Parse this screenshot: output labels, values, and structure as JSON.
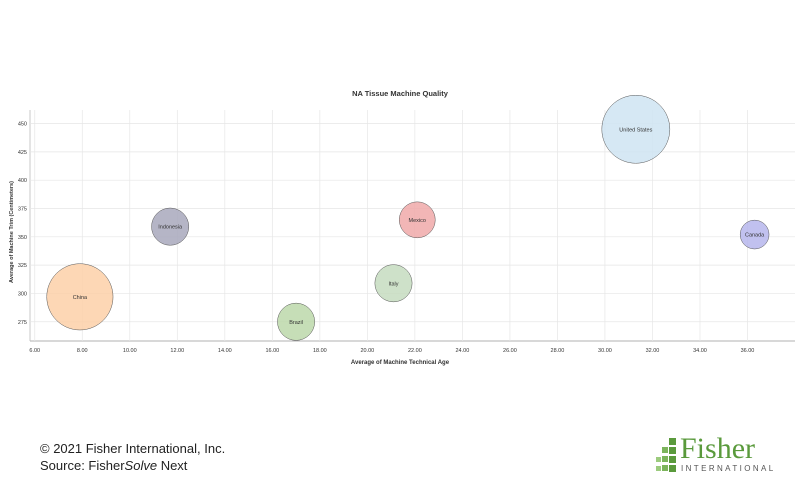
{
  "chart_data": {
    "type": "scatter",
    "title": "NA Tissue Machine Quality",
    "xlabel": "Average of Machine Technical Age",
    "ylabel": "Average of Machine Trim (Centimeters)",
    "xlim": [
      5.8,
      38.0
    ],
    "ylim": [
      258,
      462
    ],
    "x_ticks": [
      6,
      8,
      10,
      12,
      14,
      16,
      18,
      20,
      22,
      24,
      26,
      28,
      30,
      32,
      34,
      36
    ],
    "x_tick_labels": [
      "6.00",
      "8.00",
      "10.00",
      "12.00",
      "14.00",
      "16.00",
      "18.00",
      "20.00",
      "22.00",
      "24.00",
      "26.00",
      "28.00",
      "30.00",
      "32.00",
      "34.00",
      "36.00"
    ],
    "y_ticks": [
      275,
      300,
      325,
      350,
      375,
      400,
      425,
      450
    ],
    "y_tick_labels": [
      "275",
      "300",
      "325",
      "350",
      "375",
      "400",
      "425",
      "450"
    ],
    "grid": true,
    "points": [
      {
        "label": "United States",
        "x": 31.3,
        "y": 445,
        "size": 100,
        "color": "#cfe4f2"
      },
      {
        "label": "China",
        "x": 7.9,
        "y": 297,
        "size": 95,
        "color": "#fdd0a8"
      },
      {
        "label": "Indonesia",
        "x": 11.7,
        "y": 359,
        "size": 30,
        "color": "#a8a8bc"
      },
      {
        "label": "Mexico",
        "x": 22.1,
        "y": 365,
        "size": 28,
        "color": "#f0a9a9"
      },
      {
        "label": "Canada",
        "x": 36.3,
        "y": 352,
        "size": 18,
        "color": "#b6b6ec"
      },
      {
        "label": "Italy",
        "x": 21.1,
        "y": 309,
        "size": 30,
        "color": "#c6dcc0"
      },
      {
        "label": "Brazil",
        "x": 17.0,
        "y": 275,
        "size": 30,
        "color": "#bcd8aa"
      }
    ]
  },
  "footer": {
    "copyright": "© 2021 Fisher International, Inc.",
    "source_prefix": "Source: Fisher",
    "source_italic": "Solve",
    "source_suffix": " Next"
  },
  "logo": {
    "word": "Fisher",
    "sub": "INTERNATIONAL",
    "color": "#5a9a3c"
  }
}
